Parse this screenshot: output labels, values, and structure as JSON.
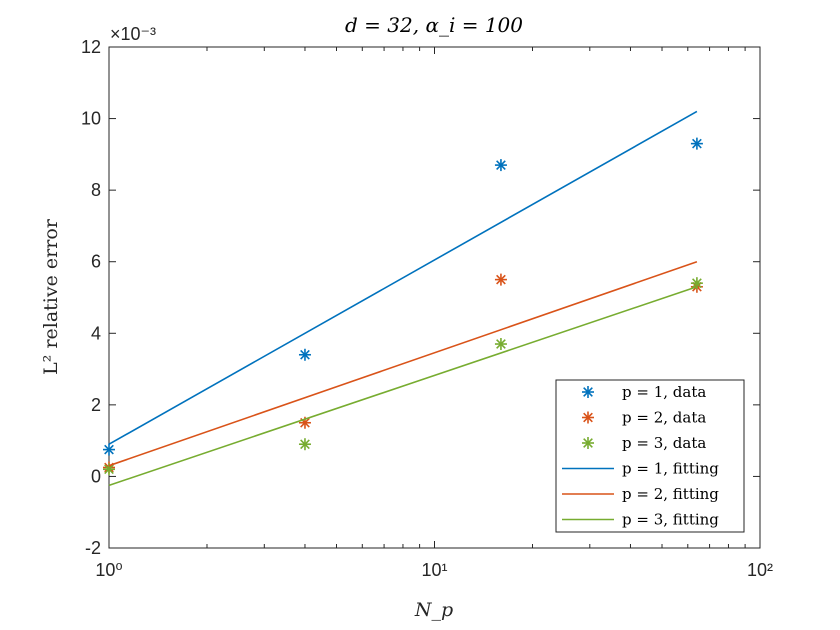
{
  "chart_data": {
    "type": "scatter",
    "title": "d = 32, α_i = 100",
    "xlabel": "N_p",
    "ylabel": "L² relative error",
    "xscale": "log",
    "xlim": [
      1,
      100
    ],
    "ylim": [
      -0.002,
      0.012
    ],
    "y_exponent_label": "×10⁻³",
    "x_tick_labels": [
      "10⁰",
      "10¹",
      "10²"
    ],
    "y_tick_labels": [
      "-2",
      "0",
      "2",
      "4",
      "6",
      "8",
      "10",
      "12"
    ],
    "x_ticks": [
      1,
      10,
      100
    ],
    "y_ticks": [
      -0.002,
      0,
      0.002,
      0.004,
      0.006,
      0.008,
      0.01,
      0.012
    ],
    "grid": false,
    "legend_position": "bottom-right",
    "series": [
      {
        "name": "p = 1, data",
        "kind": "marker",
        "color": "#0072BD",
        "x": [
          1,
          4,
          16,
          64
        ],
        "y": [
          0.00075,
          0.0034,
          0.0087,
          0.0093
        ]
      },
      {
        "name": "p = 2, data",
        "kind": "marker",
        "color": "#D95319",
        "x": [
          1,
          4,
          16,
          64
        ],
        "y": [
          0.00025,
          0.0015,
          0.0055,
          0.0053
        ]
      },
      {
        "name": "p = 3, data",
        "kind": "marker",
        "color": "#77AC30",
        "x": [
          1,
          4,
          16,
          64
        ],
        "y": [
          0.0002,
          0.0009,
          0.0037,
          0.0054
        ]
      },
      {
        "name": "p = 1, fitting",
        "kind": "line",
        "color": "#0072BD",
        "x": [
          1,
          64
        ],
        "y": [
          0.0009,
          0.0102
        ]
      },
      {
        "name": "p = 2, fitting",
        "kind": "line",
        "color": "#D95319",
        "x": [
          1,
          64
        ],
        "y": [
          0.0003,
          0.006
        ]
      },
      {
        "name": "p = 3, fitting",
        "kind": "line",
        "color": "#77AC30",
        "x": [
          1,
          64
        ],
        "y": [
          -0.00025,
          0.0053
        ]
      }
    ]
  }
}
